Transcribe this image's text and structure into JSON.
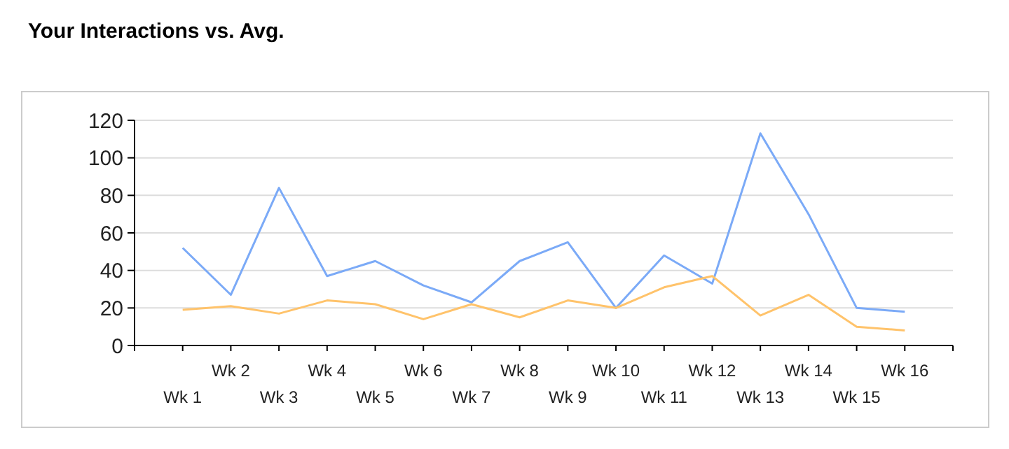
{
  "chart_data": {
    "type": "line",
    "title": "Your Interactions vs. Avg.",
    "categories": [
      "Wk 1",
      "Wk 2",
      "Wk 3",
      "Wk 4",
      "Wk 5",
      "Wk 6",
      "Wk 7",
      "Wk 8",
      "Wk 9",
      "Wk 10",
      "Wk 11",
      "Wk 12",
      "Wk 13",
      "Wk 14",
      "Wk 15",
      "Wk 16"
    ],
    "series": [
      {
        "color": "#7baaf7",
        "values": [
          52,
          27,
          84,
          37,
          45,
          32,
          23,
          45,
          55,
          20,
          48,
          33,
          113,
          70,
          20,
          18
        ]
      },
      {
        "color": "#ffc36b",
        "values": [
          19,
          21,
          17,
          24,
          22,
          14,
          22,
          15,
          24,
          20,
          31,
          37,
          16,
          27,
          10,
          8
        ]
      }
    ],
    "ylim": [
      0,
      120
    ],
    "yticks": [
      0,
      20,
      40,
      60,
      80,
      100,
      120
    ],
    "grid": "y",
    "marker": "none",
    "line_style": "solid"
  }
}
